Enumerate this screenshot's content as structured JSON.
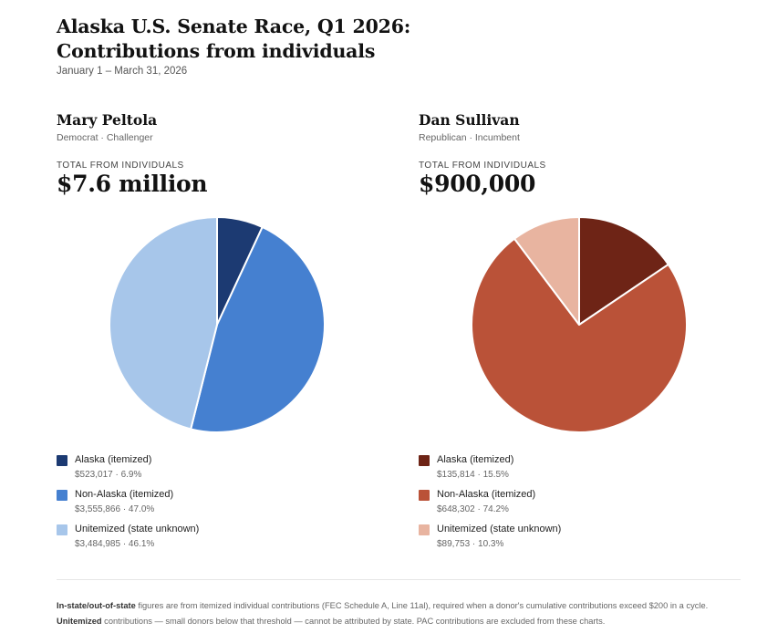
{
  "header": {
    "title": "Alaska U.S. Senate Race, Q1 2026: Contributions from individuals",
    "subtitle": "January 1 – March 31, 2026"
  },
  "candidates": [
    {
      "name": "Mary Peltola",
      "meta": "Democrat · Challenger",
      "total_label": "TOTAL FROM INDIVIDUALS",
      "total_value": "$7.6 million"
    },
    {
      "name": "Dan Sullivan",
      "meta": "Republican · Incumbent",
      "total_label": "TOTAL FROM INDIVIDUALS",
      "total_value": "$900,000"
    }
  ],
  "chart_data": [
    {
      "type": "pie",
      "title": "Mary Peltola",
      "start_angle": "12 o'clock, clockwise",
      "categories": [
        "Alaska (itemized)",
        "Non-Alaska (itemized)",
        "Unitemized (state unknown)"
      ],
      "values": [
        523017,
        3555866,
        3484985
      ],
      "percent": [
        6.9,
        47.0,
        46.1
      ],
      "labels": [
        "$523,017 · 6.9%",
        "$3,555,866 · 47.0%",
        "$3,484,985 · 46.1%"
      ],
      "colors": [
        "#1c3a72",
        "#4580d0",
        "#a7c6ea"
      ],
      "legend": "bottom"
    },
    {
      "type": "pie",
      "title": "Dan Sullivan",
      "start_angle": "12 o'clock, clockwise",
      "categories": [
        "Alaska (itemized)",
        "Non-Alaska (itemized)",
        "Unitemized (state unknown)"
      ],
      "values": [
        135814,
        648302,
        89753
      ],
      "percent": [
        15.5,
        74.2,
        10.3
      ],
      "labels": [
        "$135,814 · 15.5%",
        "$648,302 · 74.2%",
        "$89,753 · 10.3%"
      ],
      "colors": [
        "#6e2416",
        "#ba5238",
        "#e8b4a0"
      ],
      "legend": "bottom"
    }
  ],
  "notes": {
    "line1_bold": "In-state/out-of-state",
    "line1_rest": " figures are from itemized individual contributions (FEC Schedule A, Line 11al), required when a donor's cumulative contributions exceed $200 in a cycle.",
    "line2_bold": "Unitemized",
    "line2_rest": " contributions — small donors below that threshold — cannot be attributed by state. PAC contributions are excluded from these charts."
  }
}
